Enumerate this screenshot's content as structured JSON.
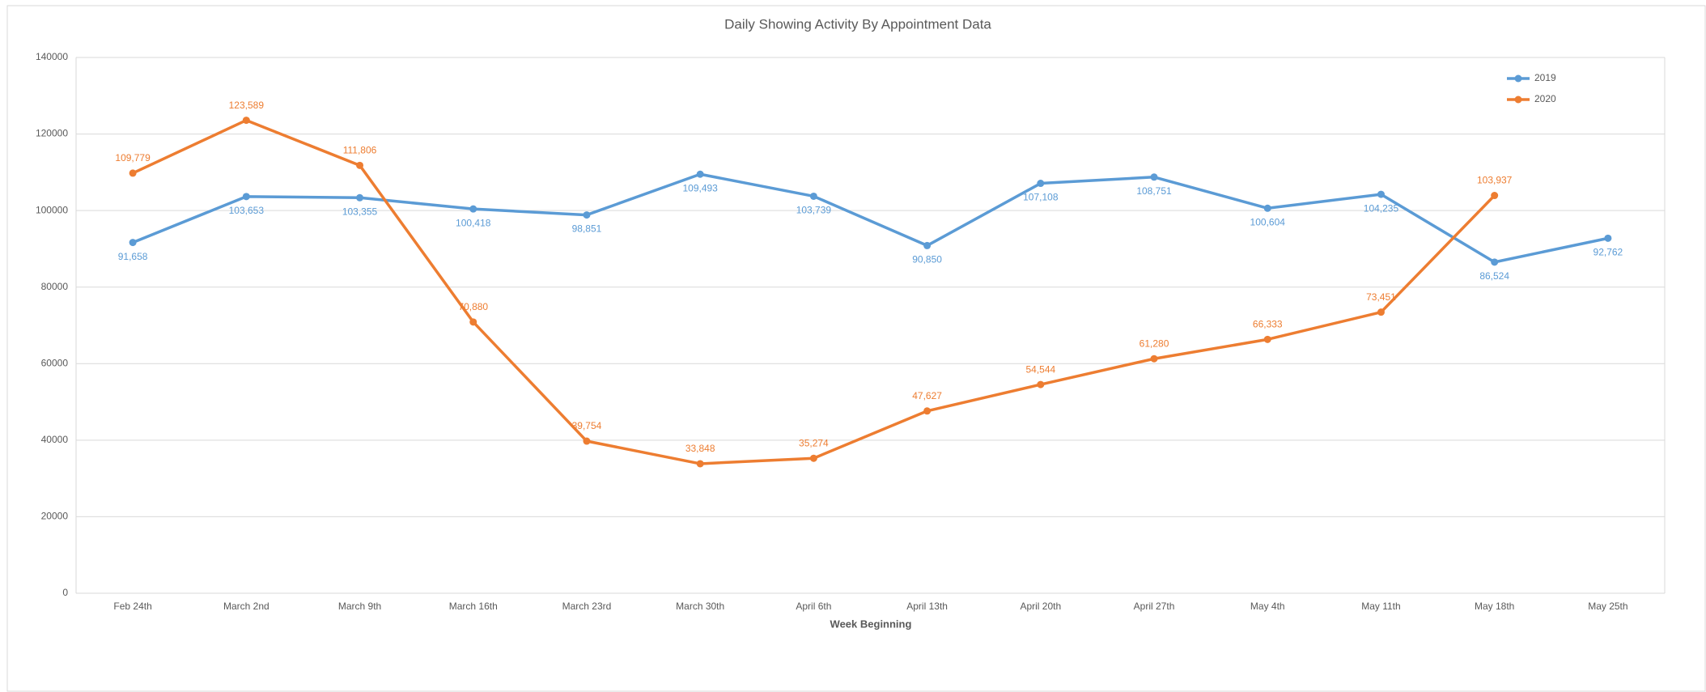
{
  "chart_data": {
    "type": "line",
    "title": "Daily Showing Activity By Appointment Data",
    "x_label": "Week Beginning",
    "categories": [
      "Feb 24th",
      "March 2nd",
      "March 9th",
      "March 16th",
      "March 23rd",
      "March 30th",
      "April 6th",
      "April 13th",
      "April 20th",
      "April 27th",
      "May 4th",
      "May 11th",
      "May 18th",
      "May 25th"
    ],
    "series": [
      {
        "name": "2019",
        "color": "#5b9bd5",
        "label_position": "below",
        "values": [
          91658,
          103653,
          103355,
          100418,
          98851,
          109493,
          103739,
          90850,
          107108,
          108751,
          100604,
          104235,
          86524,
          92762
        ],
        "value_labels": [
          "91,658",
          "103,653",
          "103,355",
          "100,418",
          "98,851",
          "109,493",
          "103,739",
          "90,850",
          "107,108",
          "108,751",
          "100,604",
          "104,235",
          "86,524",
          "92,762"
        ]
      },
      {
        "name": "2020",
        "color": "#ed7d31",
        "label_position": "above",
        "values": [
          109779,
          123589,
          111806,
          70880,
          39754,
          33848,
          35274,
          47627,
          54544,
          61280,
          66333,
          73451,
          103937,
          null
        ],
        "value_labels": [
          "109,779",
          "123,589",
          "111,806",
          "70,880",
          "39,754",
          "33,848",
          "35,274",
          "47,627",
          "54,544",
          "61,280",
          "66,333",
          "73,451",
          "103,937",
          null
        ]
      }
    ],
    "ylim": [
      0,
      140000
    ],
    "yticks": [
      0,
      20000,
      40000,
      60000,
      80000,
      100000,
      120000,
      140000
    ],
    "grid": true,
    "legend": "top-right"
  }
}
